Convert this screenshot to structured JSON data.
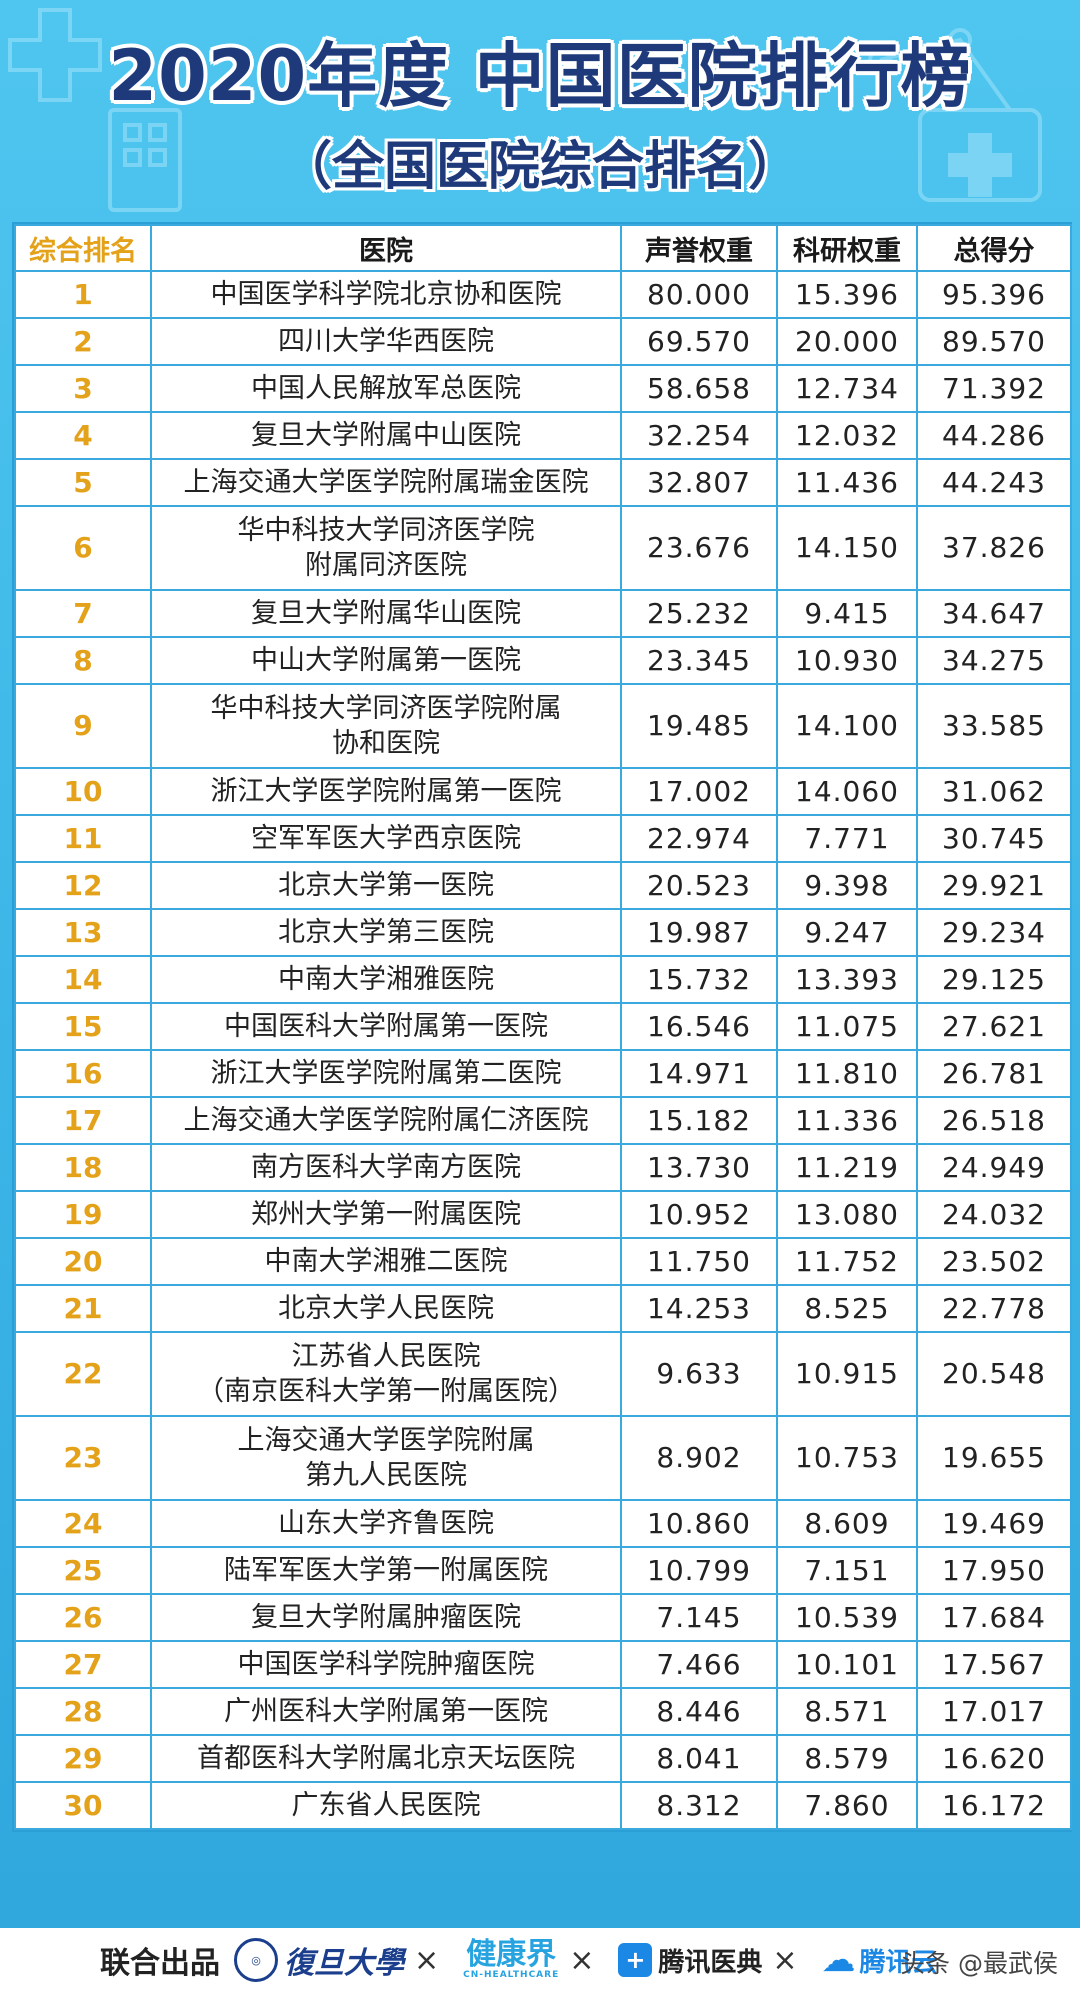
{
  "header": {
    "title": "2020年度 中国医院排行榜",
    "subtitle": "（全国医院综合排名）"
  },
  "table": {
    "columns": [
      "综合排名",
      "医院",
      "声誉权重",
      "科研权重",
      "总得分"
    ],
    "rows": [
      {
        "rank": "1",
        "hospital_lines": [
          "中国医学科学院北京协和医院"
        ],
        "reputation": "80.000",
        "research": "15.396",
        "total": "95.396"
      },
      {
        "rank": "2",
        "hospital_lines": [
          "四川大学华西医院"
        ],
        "reputation": "69.570",
        "research": "20.000",
        "total": "89.570"
      },
      {
        "rank": "3",
        "hospital_lines": [
          "中国人民解放军总医院"
        ],
        "reputation": "58.658",
        "research": "12.734",
        "total": "71.392"
      },
      {
        "rank": "4",
        "hospital_lines": [
          "复旦大学附属中山医院"
        ],
        "reputation": "32.254",
        "research": "12.032",
        "total": "44.286"
      },
      {
        "rank": "5",
        "hospital_lines": [
          "上海交通大学医学院附属瑞金医院"
        ],
        "reputation": "32.807",
        "research": "11.436",
        "total": "44.243"
      },
      {
        "rank": "6",
        "hospital_lines": [
          "华中科技大学同济医学院",
          "附属同济医院"
        ],
        "reputation": "23.676",
        "research": "14.150",
        "total": "37.826"
      },
      {
        "rank": "7",
        "hospital_lines": [
          "复旦大学附属华山医院"
        ],
        "reputation": "25.232",
        "research": "9.415",
        "total": "34.647"
      },
      {
        "rank": "8",
        "hospital_lines": [
          "中山大学附属第一医院"
        ],
        "reputation": "23.345",
        "research": "10.930",
        "total": "34.275"
      },
      {
        "rank": "9",
        "hospital_lines": [
          "华中科技大学同济医学院附属",
          "协和医院"
        ],
        "reputation": "19.485",
        "research": "14.100",
        "total": "33.585"
      },
      {
        "rank": "10",
        "hospital_lines": [
          "浙江大学医学院附属第一医院"
        ],
        "reputation": "17.002",
        "research": "14.060",
        "total": "31.062"
      },
      {
        "rank": "11",
        "hospital_lines": [
          "空军军医大学西京医院"
        ],
        "reputation": "22.974",
        "research": "7.771",
        "total": "30.745"
      },
      {
        "rank": "12",
        "hospital_lines": [
          "北京大学第一医院"
        ],
        "reputation": "20.523",
        "research": "9.398",
        "total": "29.921"
      },
      {
        "rank": "13",
        "hospital_lines": [
          "北京大学第三医院"
        ],
        "reputation": "19.987",
        "research": "9.247",
        "total": "29.234"
      },
      {
        "rank": "14",
        "hospital_lines": [
          "中南大学湘雅医院"
        ],
        "reputation": "15.732",
        "research": "13.393",
        "total": "29.125"
      },
      {
        "rank": "15",
        "hospital_lines": [
          "中国医科大学附属第一医院"
        ],
        "reputation": "16.546",
        "research": "11.075",
        "total": "27.621"
      },
      {
        "rank": "16",
        "hospital_lines": [
          "浙江大学医学院附属第二医院"
        ],
        "reputation": "14.971",
        "research": "11.810",
        "total": "26.781"
      },
      {
        "rank": "17",
        "hospital_lines": [
          "上海交通大学医学院附属仁济医院"
        ],
        "reputation": "15.182",
        "research": "11.336",
        "total": "26.518"
      },
      {
        "rank": "18",
        "hospital_lines": [
          "南方医科大学南方医院"
        ],
        "reputation": "13.730",
        "research": "11.219",
        "total": "24.949"
      },
      {
        "rank": "19",
        "hospital_lines": [
          "郑州大学第一附属医院"
        ],
        "reputation": "10.952",
        "research": "13.080",
        "total": "24.032"
      },
      {
        "rank": "20",
        "hospital_lines": [
          "中南大学湘雅二医院"
        ],
        "reputation": "11.750",
        "research": "11.752",
        "total": "23.502"
      },
      {
        "rank": "21",
        "hospital_lines": [
          "北京大学人民医院"
        ],
        "reputation": "14.253",
        "research": "8.525",
        "total": "22.778"
      },
      {
        "rank": "22",
        "hospital_lines": [
          "江苏省人民医院",
          "（南京医科大学第一附属医院）"
        ],
        "reputation": "9.633",
        "research": "10.915",
        "total": "20.548"
      },
      {
        "rank": "23",
        "hospital_lines": [
          "上海交通大学医学院附属",
          "第九人民医院"
        ],
        "reputation": "8.902",
        "research": "10.753",
        "total": "19.655"
      },
      {
        "rank": "24",
        "hospital_lines": [
          "山东大学齐鲁医院"
        ],
        "reputation": "10.860",
        "research": "8.609",
        "total": "19.469"
      },
      {
        "rank": "25",
        "hospital_lines": [
          "陆军军医大学第一附属医院"
        ],
        "reputation": "10.799",
        "research": "7.151",
        "total": "17.950"
      },
      {
        "rank": "26",
        "hospital_lines": [
          "复旦大学附属肿瘤医院"
        ],
        "reputation": "7.145",
        "research": "10.539",
        "total": "17.684"
      },
      {
        "rank": "27",
        "hospital_lines": [
          "中国医学科学院肿瘤医院"
        ],
        "reputation": "7.466",
        "research": "10.101",
        "total": "17.567"
      },
      {
        "rank": "28",
        "hospital_lines": [
          "广州医科大学附属第一医院"
        ],
        "reputation": "8.446",
        "research": "8.571",
        "total": "17.017"
      },
      {
        "rank": "29",
        "hospital_lines": [
          "首都医科大学附属北京天坛医院"
        ],
        "reputation": "8.041",
        "research": "8.579",
        "total": "16.620"
      },
      {
        "rank": "30",
        "hospital_lines": [
          "广东省人民医院"
        ],
        "reputation": "8.312",
        "research": "7.860",
        "total": "16.172"
      }
    ]
  },
  "footer": {
    "label": "联合出品",
    "logos": {
      "fudan": "復旦大學",
      "jkj_cn": "健康界",
      "jkj_en": "CN-HEALTHCARE",
      "tencent": "腾讯医典",
      "cloud": "腾讯云"
    },
    "separator": "×",
    "watermark": "头条 @最武侯"
  },
  "colors": {
    "background": "#3bb4e6",
    "title": "#1f3a7a",
    "rank": "#e3a21a",
    "grid": "#3aa9dd"
  }
}
